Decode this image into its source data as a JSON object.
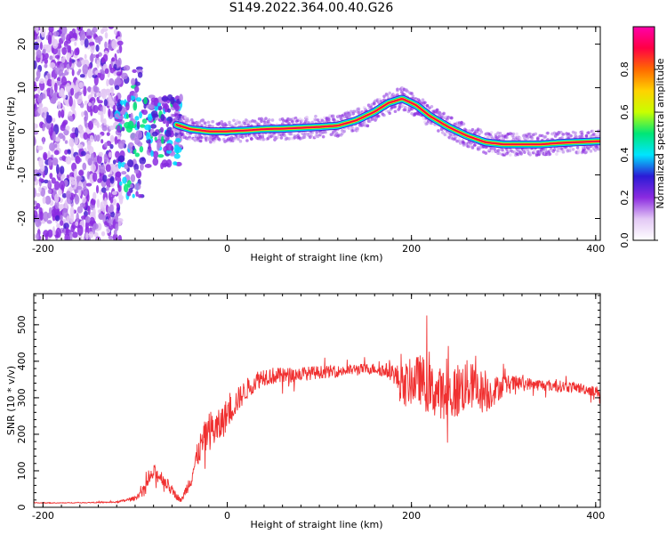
{
  "title": "S149.2022.364.00.40.G26",
  "chart_data": [
    {
      "type": "heatmap",
      "xlabel": "Height of straight line (km)",
      "ylabel": "Frequency (Hz)",
      "xlim": [
        -210,
        405
      ],
      "ylim": [
        -25,
        24
      ],
      "x_ticks": [
        "-200",
        "0",
        "200",
        "400"
      ],
      "y_ticks": [
        "-20",
        "-10",
        "0",
        "10",
        "20"
      ],
      "colorbar": {
        "label": "Normalized spectral amplitude",
        "range": [
          0,
          1
        ],
        "ticks": [
          "0.0",
          "0.2",
          "0.4",
          "0.6",
          "0.8"
        ],
        "colors": [
          "#ffffff",
          "#e3c8f5",
          "#8b2be0",
          "#2b1bd6",
          "#00e5ff",
          "#00e676",
          "#c8ff00",
          "#ffd200",
          "#ff6a00",
          "#ff0044",
          "#ff00aa"
        ]
      },
      "ridge": {
        "x": [
          -55,
          -40,
          -20,
          0,
          20,
          40,
          60,
          80,
          100,
          120,
          140,
          160,
          175,
          190,
          205,
          220,
          240,
          260,
          280,
          300,
          320,
          340,
          360,
          380,
          400
        ],
        "y": [
          1.5,
          0.5,
          0,
          0,
          0.2,
          0.5,
          0.6,
          0.8,
          1.0,
          1.3,
          2.5,
          4.5,
          6.5,
          7.5,
          6.0,
          3.5,
          1.0,
          -1.0,
          -2.5,
          -3.0,
          -3.0,
          -3.0,
          -2.7,
          -2.5,
          -2.3
        ]
      }
    },
    {
      "type": "line",
      "xlabel": "Height of straight line (km)",
      "ylabel": "SNR (10 * v/v)",
      "xlim": [
        -210,
        405
      ],
      "ylim": [
        0,
        585
      ],
      "x_ticks": [
        "-200",
        "0",
        "200",
        "400"
      ],
      "y_ticks": [
        "0",
        "100",
        "200",
        "300",
        "400",
        "500"
      ],
      "color": "#f03030",
      "series": [
        {
          "x": [
            -210,
            -180,
            -150,
            -120,
            -100,
            -90,
            -80,
            -70,
            -60,
            -50,
            -40,
            -30,
            -20,
            -10,
            0,
            10,
            20,
            30,
            40,
            60,
            80,
            100,
            120,
            140,
            160,
            180,
            190,
            200,
            210,
            220,
            230,
            240,
            250,
            260,
            270,
            280,
            290,
            300,
            320,
            340,
            360,
            380,
            405
          ],
          "values": [
            12,
            12,
            13,
            14,
            25,
            50,
            95,
            80,
            45,
            18,
            75,
            160,
            210,
            215,
            255,
            290,
            320,
            345,
            360,
            360,
            365,
            370,
            372,
            378,
            380,
            370,
            330,
            345,
            350,
            320,
            315,
            305,
            320,
            335,
            330,
            310,
            320,
            335,
            340,
            335,
            332,
            328,
            315
          ],
          "noise": [
            1,
            1,
            1,
            2,
            6,
            12,
            22,
            20,
            14,
            6,
            24,
            40,
            55,
            50,
            45,
            35,
            30,
            28,
            26,
            22,
            20,
            18,
            16,
            15,
            15,
            25,
            60,
            65,
            70,
            75,
            70,
            72,
            80,
            70,
            60,
            58,
            40,
            30,
            18,
            16,
            16,
            15,
            15
          ]
        }
      ]
    }
  ]
}
